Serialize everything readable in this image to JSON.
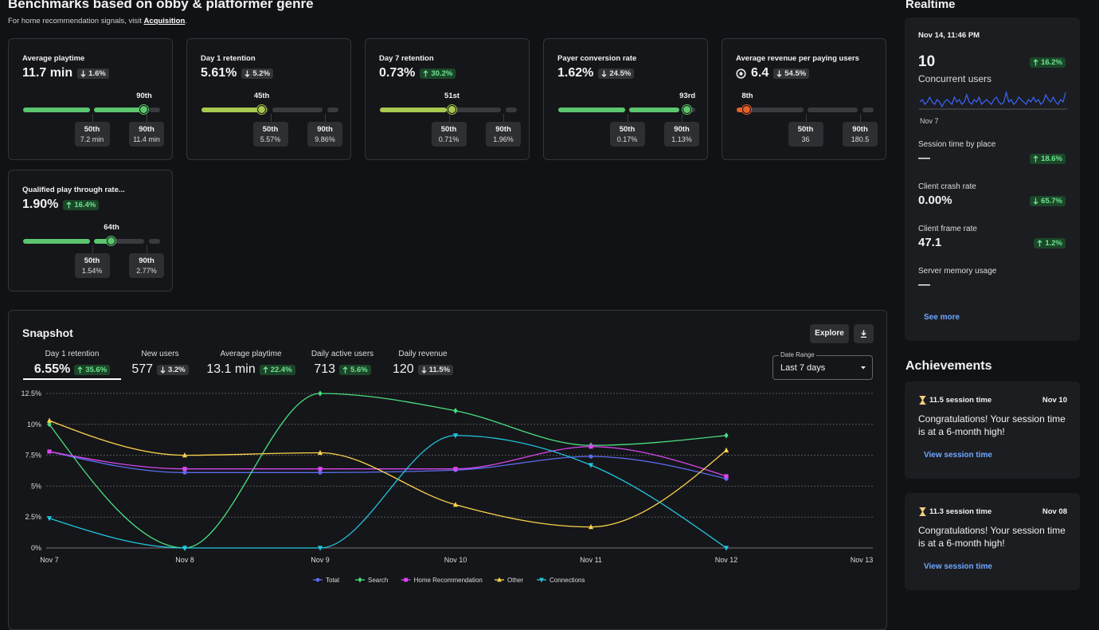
{
  "header": {
    "title": "Benchmarks based on obby & platformer genre",
    "subtitle": "For home recommendation signals, visit",
    "link": "Acquisition",
    "subtitle_end": "."
  },
  "benchmarks": [
    {
      "title": "Average playtime",
      "value": "11.7 min",
      "change": "1.6%",
      "direction": "down",
      "tone": "neutral",
      "percentile": {
        "value": 90,
        "label": "90th"
      },
      "color": "#5cc66f",
      "markers": [
        {
          "label": "50th",
          "value": "7.2 min"
        },
        {
          "label": "90th",
          "value": "11.4 min"
        }
      ]
    },
    {
      "title": "Day 1 retention",
      "value": "5.61%",
      "change": "5.2%",
      "direction": "down",
      "tone": "neutral",
      "percentile": {
        "value": 45,
        "label": "45th"
      },
      "color": "#a8c850",
      "markers": [
        {
          "label": "50th",
          "value": "5.57%"
        },
        {
          "label": "90th",
          "value": "9.86%"
        }
      ]
    },
    {
      "title": "Day 7 retention",
      "value": "0.73%",
      "change": "30.2%",
      "direction": "up",
      "tone": "positive",
      "percentile": {
        "value": 51,
        "label": "51st"
      },
      "color": "#a8c850",
      "markers": [
        {
          "label": "50th",
          "value": "0.71%"
        },
        {
          "label": "90th",
          "value": "1.96%"
        }
      ]
    },
    {
      "title": "Payer conversion rate",
      "value": "1.62%",
      "change": "24.5%",
      "direction": "down",
      "tone": "neutral",
      "percentile": {
        "value": 93,
        "label": "93rd"
      },
      "color": "#5cc66f",
      "markers": [
        {
          "label": "50th",
          "value": "0.17%"
        },
        {
          "label": "90th",
          "value": "1.13%"
        }
      ]
    },
    {
      "title": "Average revenue per paying users",
      "icon": "robux",
      "value": "6.4",
      "change": "54.5%",
      "direction": "down",
      "tone": "neutral",
      "percentile": {
        "value": 8,
        "label": "8th"
      },
      "color": "#e8602c",
      "markers": [
        {
          "label": "50th",
          "value": "36"
        },
        {
          "label": "90th",
          "value": "180.5"
        }
      ]
    },
    {
      "title": "Qualified play through rate...",
      "value": "1.90%",
      "change": "16.4%",
      "direction": "up",
      "tone": "positive",
      "percentile": {
        "value": 64,
        "label": "64th"
      },
      "color": "#5cc66f",
      "markers": [
        {
          "label": "50th",
          "value": "1.54%"
        },
        {
          "label": "90th",
          "value": "2.77%"
        }
      ]
    }
  ],
  "realtime": {
    "title": "Realtime",
    "timestamp": "Nov 14, 11:46 PM",
    "concurrent": {
      "value": "10",
      "change": "16.2%",
      "direction": "up",
      "tone": "positive",
      "label": "Concurrent users",
      "start_label": "Nov 7",
      "sparkline": [
        10,
        11,
        9,
        10,
        12,
        10,
        9,
        11,
        10,
        8,
        10,
        11,
        10,
        9,
        12,
        10,
        11,
        9,
        10,
        13,
        10,
        9,
        11,
        10,
        12,
        9,
        10,
        11,
        10,
        9,
        11,
        12,
        10,
        9,
        10,
        14,
        10,
        11,
        9,
        10,
        12,
        11,
        10,
        9,
        11,
        10,
        12,
        10,
        11,
        9,
        10,
        13,
        11,
        10,
        12,
        10,
        9,
        11,
        10,
        14
      ]
    },
    "metrics": [
      {
        "label": "Session time by place",
        "value": "—",
        "change": "18.6%",
        "direction": "up",
        "tone": "positive"
      },
      {
        "label": "Client crash rate",
        "value": "0.00%",
        "change": "65.7%",
        "direction": "down",
        "tone": "positive"
      },
      {
        "label": "Client frame rate",
        "value": "47.1",
        "change": "1.2%",
        "direction": "up",
        "tone": "positive"
      },
      {
        "label": "Server memory usage",
        "value": "—"
      }
    ],
    "see_more": "See more"
  },
  "achievements": {
    "title": "Achievements",
    "items": [
      {
        "title": "11.5 session time",
        "date": "Nov 10",
        "message": "Congratulations! Your session time is at a 6-month high!",
        "link": "View session time"
      },
      {
        "title": "11.3 session time",
        "date": "Nov 08",
        "message": "Congratulations! Your session time is at a 6-month high!",
        "link": "View session time"
      }
    ]
  },
  "snapshot": {
    "title": "Snapshot",
    "explore": "Explore",
    "tabs": [
      {
        "label": "Day 1 retention",
        "value": "6.55%",
        "change": "35.6%",
        "direction": "up",
        "tone": "positive",
        "selected": true
      },
      {
        "label": "New users",
        "value": "577",
        "change": "3.2%",
        "direction": "down",
        "tone": "neutral",
        "selected": false
      },
      {
        "label": "Average playtime",
        "value": "13.1 min",
        "change": "22.4%",
        "direction": "up",
        "tone": "positive",
        "selected": false
      },
      {
        "label": "Daily active users",
        "value": "713",
        "change": "5.6%",
        "direction": "up",
        "tone": "positive",
        "selected": false
      },
      {
        "label": "Daily revenue",
        "value": "120",
        "change": "11.5%",
        "direction": "down",
        "tone": "neutral",
        "selected": false
      }
    ],
    "date_range": {
      "label": "Date Range",
      "value": "Last 7 days"
    }
  },
  "chart_data": {
    "type": "line",
    "categories": [
      "Nov 7",
      "Nov 8",
      "Nov 9",
      "Nov 10",
      "Nov 11",
      "Nov 12",
      "Nov 13"
    ],
    "series": [
      {
        "name": "Total",
        "color": "#5b6cf0",
        "marker": "circle",
        "values": [
          7.8,
          6.1,
          6.1,
          6.3,
          7.4,
          5.6,
          null
        ]
      },
      {
        "name": "Search",
        "color": "#4ade80",
        "marker": "diamond",
        "values": [
          10.0,
          0,
          12.5,
          11.1,
          8.3,
          9.1,
          null
        ]
      },
      {
        "name": "Home Recommendation",
        "color": "#d946ef",
        "marker": "square",
        "values": [
          7.8,
          6.4,
          6.4,
          6.4,
          8.2,
          5.8,
          null
        ]
      },
      {
        "name": "Other",
        "color": "#fcd34d",
        "marker": "triangle-up",
        "values": [
          10.3,
          7.5,
          7.7,
          3.5,
          1.7,
          7.9,
          null
        ]
      },
      {
        "name": "Connections",
        "color": "#22c5e0",
        "marker": "triangle-down",
        "values": [
          2.4,
          0,
          0,
          9.1,
          6.7,
          0,
          null
        ]
      }
    ],
    "ylim": [
      0,
      12.5
    ],
    "yticks": [
      {
        "value": 0,
        "label": "0%"
      },
      {
        "value": 2.5,
        "label": "2.5%"
      },
      {
        "value": 5,
        "label": "5%"
      },
      {
        "value": 7.5,
        "label": "7.5%"
      },
      {
        "value": 10,
        "label": "10%"
      },
      {
        "value": 12.5,
        "label": "12.5%"
      }
    ],
    "grid": true,
    "legend": "bottom"
  }
}
